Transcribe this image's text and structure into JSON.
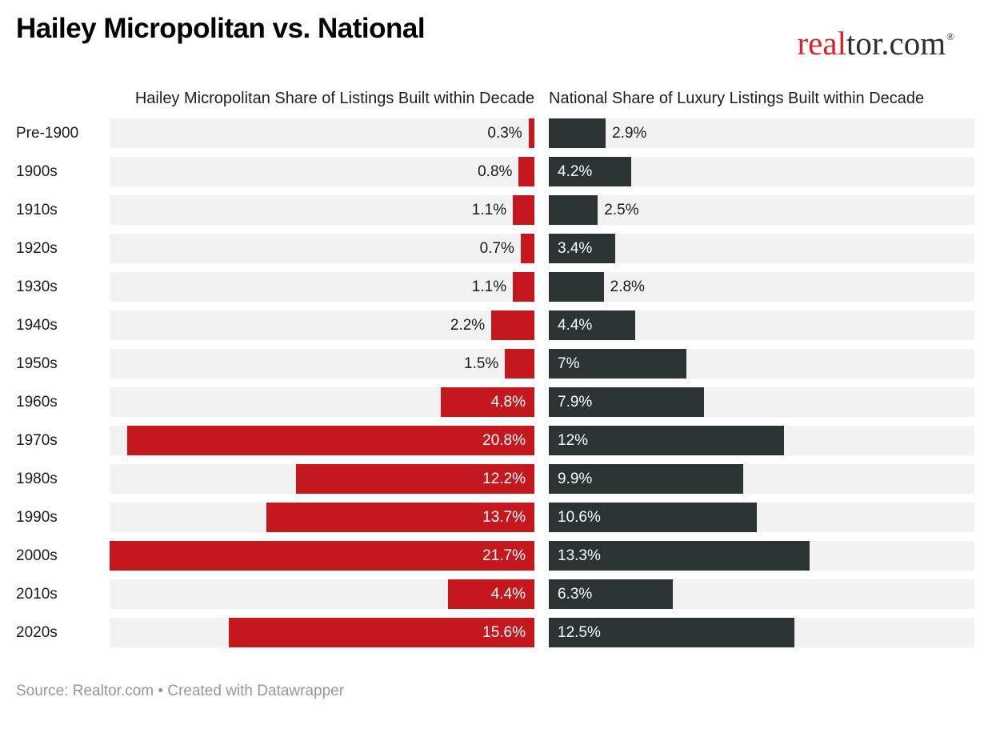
{
  "header": {
    "title": "Hailey Micropolitan vs. National",
    "logo": {
      "part1": "real",
      "part2": "tor.com",
      "trademark": "®",
      "brand_red": "#d92228",
      "brand_dark": "#2f2f2f"
    }
  },
  "chart_data": {
    "type": "bar",
    "orientation": "horizontal",
    "layout": "paired bar columns, left column bars right-aligned, right column bars left-aligned",
    "grid": false,
    "legend": "none",
    "axis_max_percent": 21.7,
    "xlim": [
      0,
      21.7
    ],
    "track_color": "#f2f2f2",
    "categories": [
      "Pre-1900",
      "1900s",
      "1910s",
      "1920s",
      "1930s",
      "1940s",
      "1950s",
      "1960s",
      "1970s",
      "1980s",
      "1990s",
      "2000s",
      "2010s",
      "2020s"
    ],
    "series": [
      {
        "name": "Hailey Micropolitan Share of Listings Built within Decade",
        "color": "#c4181e",
        "values": [
          0.3,
          0.8,
          1.1,
          0.7,
          1.1,
          2.2,
          1.5,
          4.8,
          20.8,
          12.2,
          13.7,
          21.7,
          4.4,
          15.6
        ],
        "labels": [
          "0.3%",
          "0.8%",
          "1.1%",
          "0.7%",
          "1.1%",
          "2.2%",
          "1.5%",
          "4.8%",
          "20.8%",
          "12.2%",
          "13.7%",
          "21.7%",
          "4.4%",
          "15.6%"
        ]
      },
      {
        "name": "National Share of Luxury Listings Built within Decade",
        "color": "#2b3333",
        "values": [
          2.9,
          4.2,
          2.5,
          3.4,
          2.8,
          4.4,
          7,
          7.9,
          12,
          9.9,
          10.6,
          13.3,
          6.3,
          12.5
        ],
        "labels": [
          "2.9%",
          "4.2%",
          "2.5%",
          "3.4%",
          "2.8%",
          "4.4%",
          "7%",
          "7.9%",
          "12%",
          "9.9%",
          "10.6%",
          "13.3%",
          "6.3%",
          "12.5%"
        ]
      }
    ]
  },
  "footer": {
    "text": "Source: Realtor.com • Created with Datawrapper"
  }
}
